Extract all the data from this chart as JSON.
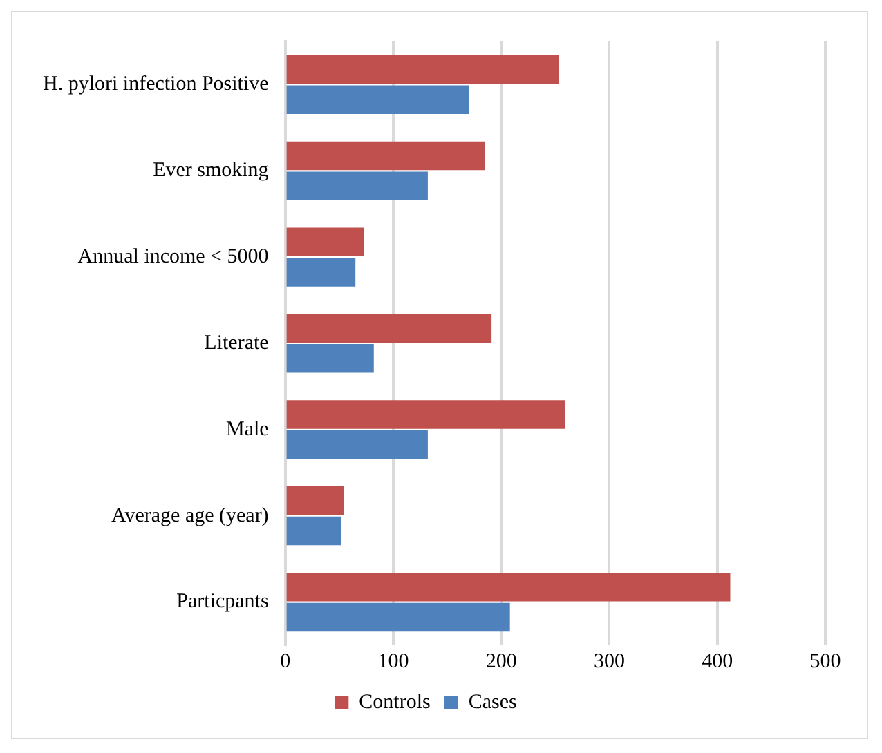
{
  "chart_data": {
    "type": "bar",
    "orientation": "horizontal",
    "categories": [
      "H. pylori infection Positive",
      "Ever smoking",
      "Annual income < 5000",
      "Literate",
      "Male",
      "Average age (year)",
      "Particpants"
    ],
    "series": [
      {
        "name": "Controls",
        "color": "#c0504d",
        "values": [
          253,
          185,
          73,
          191,
          259,
          54,
          412
        ]
      },
      {
        "name": "Cases",
        "color": "#4f81bd",
        "values": [
          170,
          132,
          65,
          82,
          132,
          52,
          208
        ]
      }
    ],
    "xlim": [
      0,
      500
    ],
    "xticks": [
      0,
      100,
      200,
      300,
      400,
      500
    ],
    "grid": "x",
    "legend": "bottom"
  }
}
